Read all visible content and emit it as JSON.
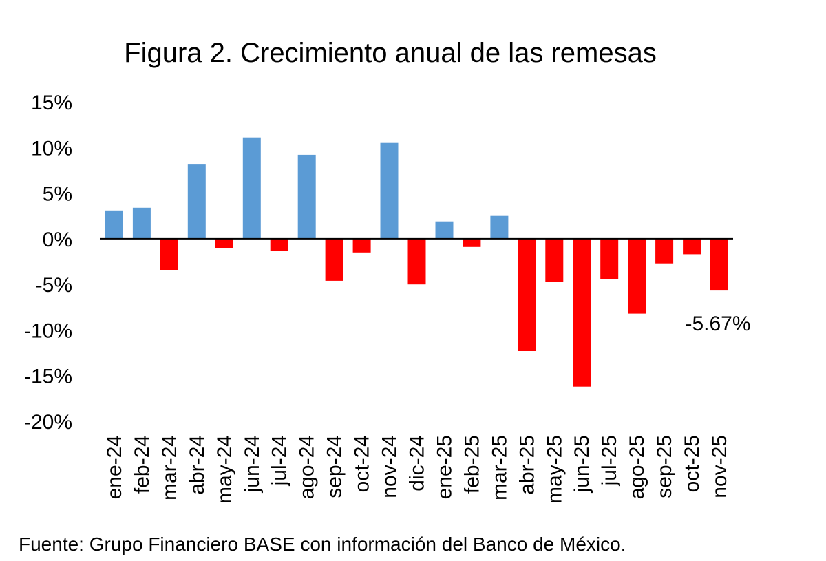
{
  "chart_data": {
    "type": "bar",
    "title": "Figura 2. Crecimiento anual de las remesas",
    "xlabel": "",
    "ylabel": "",
    "ylim": [
      -20,
      15
    ],
    "yticks": [
      15,
      10,
      5,
      0,
      -5,
      -10,
      -15,
      -20
    ],
    "ytick_labels": [
      "15%",
      "10%",
      "5%",
      "0%",
      "-5%",
      "-10%",
      "-15%",
      "-20%"
    ],
    "grid": false,
    "legend": "none",
    "categories": [
      "ene-24",
      "feb-24",
      "mar-24",
      "abr-24",
      "may-24",
      "jun-24",
      "jul-24",
      "ago-24",
      "sep-24",
      "oct-24",
      "nov-24",
      "dic-24",
      "ene-25",
      "feb-25",
      "mar-25",
      "abr-25",
      "may-25",
      "jun-25",
      "jul-25",
      "ago-25",
      "sep-25",
      "oct-25",
      "nov-25"
    ],
    "values": [
      3.1,
      3.4,
      -3.4,
      8.2,
      -1.0,
      11.1,
      -1.3,
      9.2,
      -4.6,
      -1.5,
      10.5,
      -5.0,
      1.9,
      -0.9,
      2.5,
      -12.3,
      -4.7,
      -16.2,
      -4.4,
      -8.2,
      -2.7,
      -1.7,
      -5.67
    ],
    "positive_color": "#5B9BD5",
    "negative_color": "#FF0000",
    "annotation": {
      "text": "-5.67%",
      "category": "nov-25"
    }
  },
  "source_note": "Fuente: Grupo Financiero BASE con información del Banco de México."
}
